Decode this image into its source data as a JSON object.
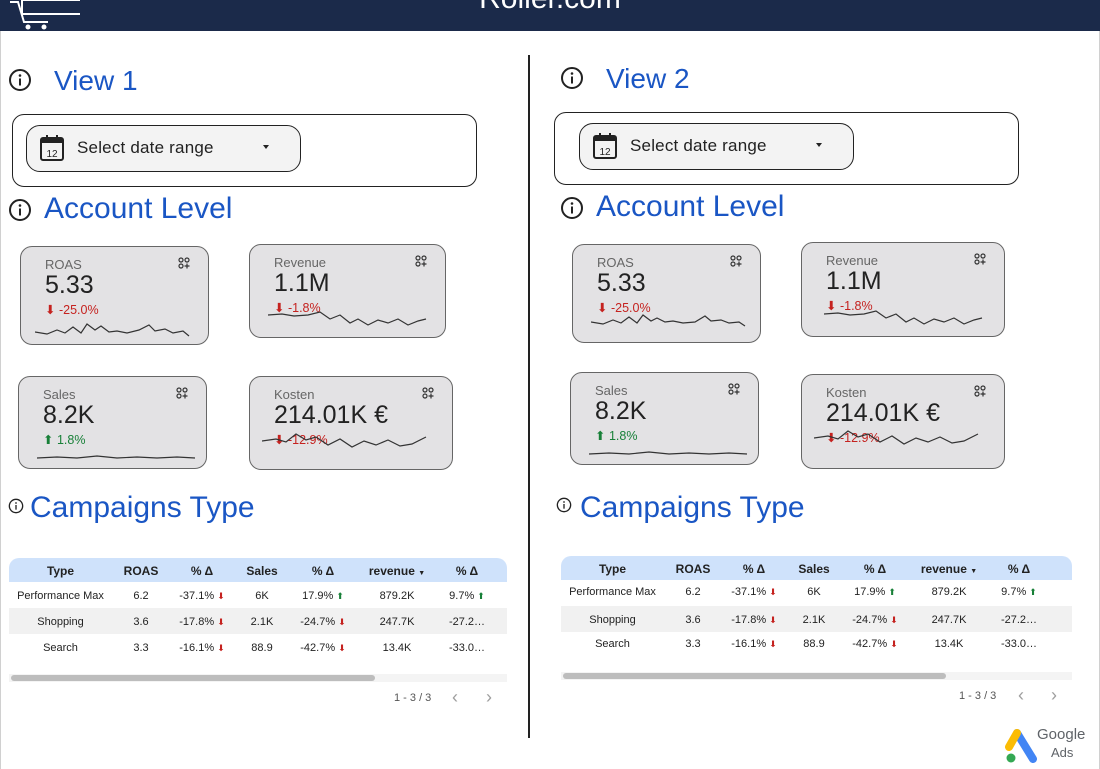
{
  "header": {
    "site_title": "Roller.com"
  },
  "views": [
    {
      "title": "View 1",
      "date_range": {
        "label": "Select date range"
      },
      "account_level": "Account Level",
      "kpis": [
        {
          "label": "ROAS",
          "value": "5.33",
          "delta": "-25.0%",
          "direction": "down"
        },
        {
          "label": "Revenue",
          "value": "1.1M",
          "delta": "-1.8%",
          "direction": "down"
        },
        {
          "label": "Sales",
          "value": "8.2K",
          "delta": "1.8%",
          "direction": "up"
        },
        {
          "label": "Kosten",
          "value": "214.01K €",
          "delta": "-12.9%",
          "direction": "down"
        }
      ],
      "campaigns_title": "Campaigns Type",
      "table": {
        "columns": [
          "Type",
          "ROAS",
          "% Δ",
          "Sales",
          "% Δ",
          "revenue",
          "% Δ"
        ],
        "rows": [
          [
            "Performance Max",
            "6.2",
            "-37.1%",
            "6K",
            "17.9%",
            "879.2K",
            "9.7%"
          ],
          [
            "Shopping",
            "3.6",
            "-17.8%",
            "2.1K",
            "-24.7%",
            "247.7K",
            "-27.2…"
          ],
          [
            "Search",
            "3.3",
            "-16.1%",
            "88.9",
            "-42.7%",
            "13.4K",
            "-33.0…"
          ]
        ],
        "pagination": "1 - 3 / 3"
      }
    },
    {
      "title": "View 2",
      "date_range": {
        "label": "Select date range"
      },
      "account_level": "Account Level",
      "kpis": [
        {
          "label": "ROAS",
          "value": "5.33",
          "delta": "-25.0%",
          "direction": "down"
        },
        {
          "label": "Revenue",
          "value": "1.1M",
          "delta": "-1.8%",
          "direction": "down"
        },
        {
          "label": "Sales",
          "value": "8.2K",
          "delta": "1.8%",
          "direction": "up"
        },
        {
          "label": "Kosten",
          "value": "214.01K €",
          "delta": "-12.9%",
          "direction": "down"
        }
      ],
      "campaigns_title": "Campaigns Type",
      "table": {
        "columns": [
          "Type",
          "ROAS",
          "% Δ",
          "Sales",
          "% Δ",
          "revenue",
          "% Δ"
        ],
        "rows": [
          [
            "Performance Max",
            "6.2",
            "-37.1%",
            "6K",
            "17.9%",
            "879.2K",
            "9.7%"
          ],
          [
            "Shopping",
            "3.6",
            "-17.8%",
            "2.1K",
            "-24.7%",
            "247.7K",
            "-27.2…"
          ],
          [
            "Search",
            "3.3",
            "-16.1%",
            "88.9",
            "-42.7%",
            "13.4K",
            "-33.0…"
          ]
        ],
        "pagination": "1 - 3 / 3"
      }
    }
  ],
  "logo": {
    "brand": "Google",
    "product": "Ads"
  },
  "colors": {
    "header_bg": "#1b2a4a",
    "heading": "#1a56c4",
    "negative": "#c5221f",
    "positive": "#188038",
    "table_header": "#cfe2fb"
  },
  "icons": [
    "shopping-cart-icon",
    "info-icon",
    "calendar-icon",
    "dropdown-caret-icon",
    "metric-options-icon",
    "chevron-left-icon",
    "chevron-right-icon",
    "google-ads-logo"
  ]
}
